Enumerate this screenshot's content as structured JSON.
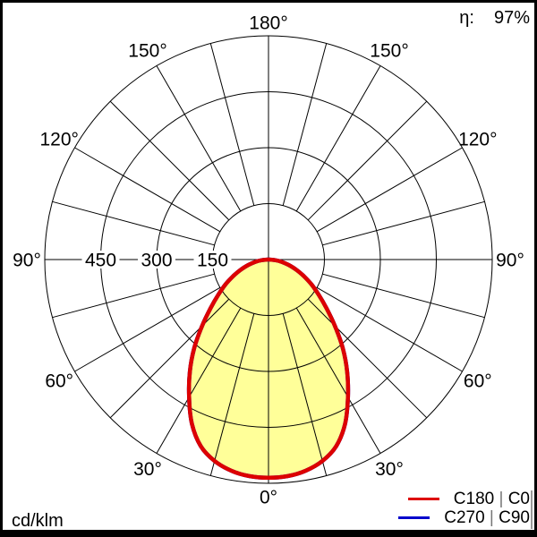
{
  "header": {
    "efficiency_label": "η:",
    "efficiency_value": "97%"
  },
  "footer": {
    "unit_label": "cd/klm"
  },
  "legend": {
    "rows": [
      {
        "left": "C180",
        "sep": "|",
        "right": "C0",
        "color": "#dd0000"
      },
      {
        "left": "C270",
        "sep": "|",
        "right": "C90",
        "color": "#0000cc"
      }
    ]
  },
  "chart_data": {
    "type": "polar_intensity",
    "title": "Luminous intensity distribution (polar)",
    "unit": "cd/klm",
    "efficiency_percent": 97,
    "angle_zero": "0° at bottom (nadir), 180° at top, mirrored left/right",
    "r_max": 600,
    "radial_ticks": [
      150,
      300,
      450,
      600
    ],
    "radial_tick_labels": [
      {
        "value": 150,
        "text": "150"
      },
      {
        "value": 300,
        "text": "300"
      },
      {
        "value": 450,
        "text": "450"
      }
    ],
    "angle_labels": [
      {
        "deg": 0,
        "text": "0°"
      },
      {
        "deg": 30,
        "text": "30°"
      },
      {
        "deg": 60,
        "text": "60°"
      },
      {
        "deg": 90,
        "text": "90°"
      },
      {
        "deg": 120,
        "text": "120°"
      },
      {
        "deg": 150,
        "text": "150°"
      },
      {
        "deg": 180,
        "text": "180°"
      }
    ],
    "spoke_step_deg": 15,
    "grid_color": "#000000",
    "angles_deg": [
      0,
      5,
      10,
      15,
      20,
      25,
      30,
      35,
      40,
      45,
      50,
      55,
      60,
      65,
      70,
      75,
      80,
      85,
      90
    ],
    "series": [
      {
        "name": "C270 | C90",
        "color": "#0000cc",
        "fill": "none",
        "symmetric": true,
        "values_cd_per_klm": [
          585,
          583,
          575,
          559,
          532,
          486,
          426,
          368,
          310,
          252,
          203,
          164,
          133,
          104,
          79,
          56,
          36,
          18,
          3
        ]
      },
      {
        "name": "C180 | C0",
        "color": "#dd0000",
        "fill": "#ffff99",
        "symmetric": true,
        "values_cd_per_klm": [
          585,
          583,
          575,
          559,
          532,
          486,
          426,
          368,
          310,
          252,
          203,
          164,
          133,
          104,
          79,
          56,
          36,
          18,
          3
        ]
      }
    ]
  }
}
